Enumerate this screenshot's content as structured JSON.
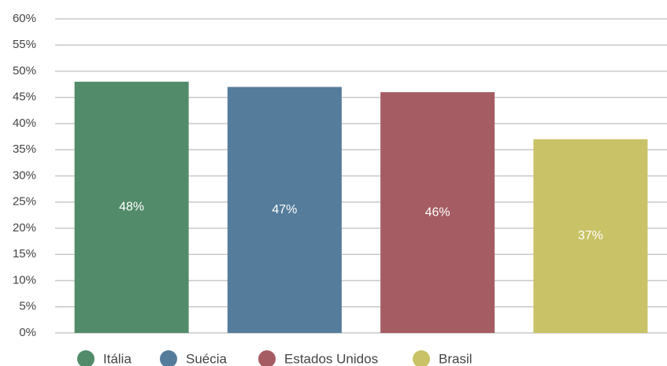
{
  "chart_data": {
    "type": "bar",
    "categories": [
      "Itália",
      "Suécia",
      "Estados Unidos",
      "Brasil"
    ],
    "values": [
      48,
      47,
      46,
      37
    ],
    "value_labels": [
      "48%",
      "47%",
      "46%",
      "37%"
    ],
    "colors": [
      "#528b69",
      "#557c9b",
      "#a55c62",
      "#c9c266"
    ],
    "ylim": [
      0,
      60
    ],
    "yticks": [
      {
        "value": 0,
        "label": "0%"
      },
      {
        "value": 5,
        "label": "5%"
      },
      {
        "value": 10,
        "label": "10%"
      },
      {
        "value": 15,
        "label": "15%"
      },
      {
        "value": 20,
        "label": "20%"
      },
      {
        "value": 25,
        "label": "25%"
      },
      {
        "value": 30,
        "label": "30%"
      },
      {
        "value": 35,
        "label": "35%"
      },
      {
        "value": 40,
        "label": "40%"
      },
      {
        "value": 45,
        "label": "45%"
      },
      {
        "value": 50,
        "label": "50%"
      },
      {
        "value": 55,
        "label": "55%"
      },
      {
        "value": 60,
        "label": "60%"
      }
    ],
    "grid": true,
    "legend": "bottom"
  }
}
